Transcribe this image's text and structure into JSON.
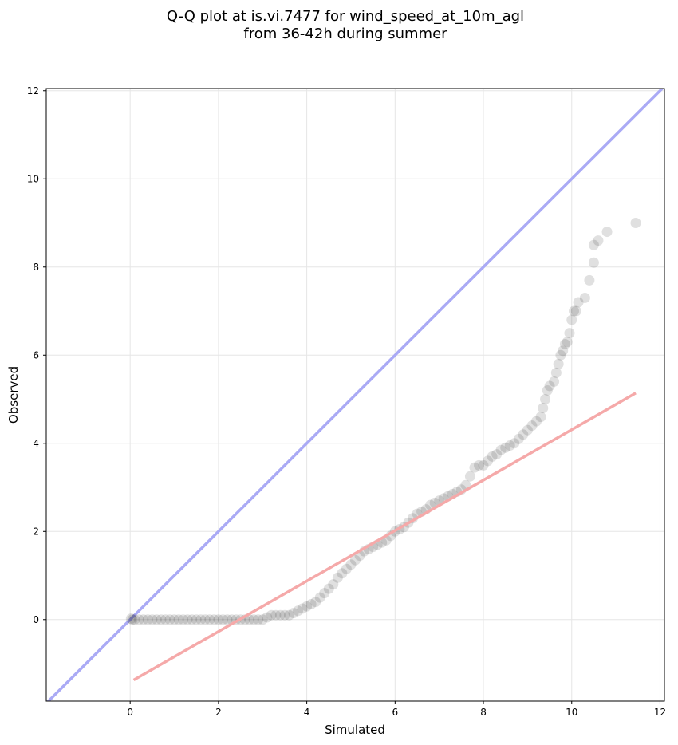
{
  "chart_data": {
    "type": "scatter",
    "title_lines": [
      "Q-Q plot at is.vi.7477 for wind_speed_at_10m_agl",
      "from 36-42h during summer"
    ],
    "xlabel": "Simulated",
    "ylabel": "Observed",
    "xlim": [
      -1.9,
      12.1
    ],
    "ylim": [
      -1.85,
      12.05
    ],
    "xticks": [
      0,
      2,
      4,
      6,
      8,
      10,
      12
    ],
    "yticks": [
      0,
      2,
      4,
      6,
      8,
      10,
      12
    ],
    "grid": true,
    "colors": {
      "points": "#000000",
      "identity_line": "#aaaaf5",
      "fit_line": "#f5a9a9",
      "grid": "#e6e6e6"
    },
    "identity_line": {
      "x": [
        -1.9,
        12.1
      ],
      "y": [
        -1.9,
        12.1
      ]
    },
    "fit_line": {
      "x": [
        0.08,
        11.45
      ],
      "y": [
        -1.37,
        5.14
      ]
    },
    "points": [
      [
        0.02,
        0.02
      ],
      [
        0.05,
        0.0
      ],
      [
        0.1,
        0.0
      ],
      [
        0.2,
        0.0
      ],
      [
        0.3,
        0.0
      ],
      [
        0.4,
        0.0
      ],
      [
        0.5,
        0.0
      ],
      [
        0.6,
        0.0
      ],
      [
        0.7,
        0.0
      ],
      [
        0.8,
        0.0
      ],
      [
        0.9,
        0.0
      ],
      [
        1.0,
        0.0
      ],
      [
        1.1,
        0.0
      ],
      [
        1.2,
        0.0
      ],
      [
        1.3,
        0.0
      ],
      [
        1.4,
        0.0
      ],
      [
        1.5,
        0.0
      ],
      [
        1.6,
        0.0
      ],
      [
        1.7,
        0.0
      ],
      [
        1.8,
        0.0
      ],
      [
        1.9,
        0.0
      ],
      [
        2.0,
        0.0
      ],
      [
        2.1,
        0.0
      ],
      [
        2.2,
        0.0
      ],
      [
        2.3,
        0.0
      ],
      [
        2.4,
        0.0
      ],
      [
        2.5,
        0.0
      ],
      [
        2.6,
        0.0
      ],
      [
        2.7,
        0.0
      ],
      [
        2.8,
        0.0
      ],
      [
        2.9,
        0.0
      ],
      [
        3.0,
        0.0
      ],
      [
        3.1,
        0.05
      ],
      [
        3.2,
        0.1
      ],
      [
        3.3,
        0.1
      ],
      [
        3.4,
        0.1
      ],
      [
        3.5,
        0.1
      ],
      [
        3.6,
        0.1
      ],
      [
        3.7,
        0.15
      ],
      [
        3.8,
        0.2
      ],
      [
        3.9,
        0.25
      ],
      [
        4.0,
        0.3
      ],
      [
        4.1,
        0.35
      ],
      [
        4.2,
        0.4
      ],
      [
        4.3,
        0.5
      ],
      [
        4.4,
        0.6
      ],
      [
        4.5,
        0.7
      ],
      [
        4.6,
        0.8
      ],
      [
        4.7,
        0.95
      ],
      [
        4.8,
        1.05
      ],
      [
        4.9,
        1.15
      ],
      [
        5.0,
        1.25
      ],
      [
        5.1,
        1.35
      ],
      [
        5.2,
        1.45
      ],
      [
        5.3,
        1.55
      ],
      [
        5.4,
        1.6
      ],
      [
        5.5,
        1.65
      ],
      [
        5.6,
        1.7
      ],
      [
        5.7,
        1.75
      ],
      [
        5.8,
        1.8
      ],
      [
        5.9,
        1.9
      ],
      [
        6.0,
        2.0
      ],
      [
        6.1,
        2.05
      ],
      [
        6.2,
        2.1
      ],
      [
        6.3,
        2.2
      ],
      [
        6.4,
        2.3
      ],
      [
        6.5,
        2.4
      ],
      [
        6.6,
        2.45
      ],
      [
        6.7,
        2.5
      ],
      [
        6.8,
        2.6
      ],
      [
        6.9,
        2.65
      ],
      [
        7.0,
        2.7
      ],
      [
        7.1,
        2.75
      ],
      [
        7.2,
        2.8
      ],
      [
        7.3,
        2.85
      ],
      [
        7.4,
        2.9
      ],
      [
        7.5,
        2.95
      ],
      [
        7.6,
        3.05
      ],
      [
        7.7,
        3.25
      ],
      [
        7.8,
        3.45
      ],
      [
        7.9,
        3.5
      ],
      [
        8.0,
        3.5
      ],
      [
        8.1,
        3.6
      ],
      [
        8.2,
        3.7
      ],
      [
        8.3,
        3.75
      ],
      [
        8.4,
        3.85
      ],
      [
        8.5,
        3.9
      ],
      [
        8.6,
        3.95
      ],
      [
        8.7,
        4.0
      ],
      [
        8.8,
        4.1
      ],
      [
        8.9,
        4.2
      ],
      [
        9.0,
        4.3
      ],
      [
        9.1,
        4.4
      ],
      [
        9.2,
        4.5
      ],
      [
        9.3,
        4.6
      ],
      [
        9.35,
        4.8
      ],
      [
        9.4,
        5.0
      ],
      [
        9.45,
        5.2
      ],
      [
        9.5,
        5.3
      ],
      [
        9.6,
        5.4
      ],
      [
        9.65,
        5.6
      ],
      [
        9.7,
        5.8
      ],
      [
        9.75,
        6.0
      ],
      [
        9.8,
        6.1
      ],
      [
        9.85,
        6.25
      ],
      [
        9.9,
        6.3
      ],
      [
        9.95,
        6.5
      ],
      [
        10.0,
        6.8
      ],
      [
        10.05,
        7.0
      ],
      [
        10.1,
        7.0
      ],
      [
        10.15,
        7.2
      ],
      [
        10.3,
        7.3
      ],
      [
        10.4,
        7.7
      ],
      [
        10.5,
        8.1
      ],
      [
        10.5,
        8.5
      ],
      [
        10.6,
        8.6
      ],
      [
        10.8,
        8.8
      ],
      [
        11.45,
        9.0
      ]
    ]
  }
}
